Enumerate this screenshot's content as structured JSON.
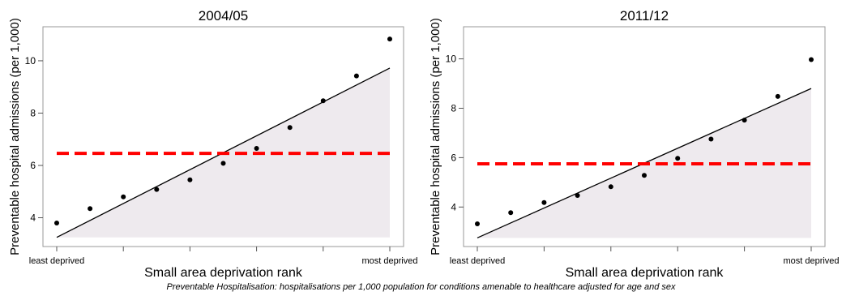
{
  "caption": "Preventable Hospitalisation: hospitalisations per 1,000 population for conditions amenable to healthcare adjusted for age and sex",
  "colors": {
    "points": "#000000",
    "trend_line": "#000000",
    "shade": "#eeeaee",
    "mean_line": "#ff0000",
    "frame": "#999999"
  },
  "chart_data": [
    {
      "type": "scatter",
      "title": "2004/05",
      "xlabel": "Small area deprivation rank",
      "ylabel": "Preventable hospital admissions (per 1,000)",
      "xtick_labels": [
        "least deprived",
        "most deprived"
      ],
      "x": [
        1,
        2,
        3,
        4,
        5,
        6,
        7,
        8,
        9,
        10,
        11
      ],
      "xlim": [
        1,
        11
      ],
      "ylim": [
        2.9,
        11.3
      ],
      "yticks": [
        4,
        6,
        8,
        10
      ],
      "points": [
        3.8,
        4.35,
        4.8,
        5.08,
        5.45,
        6.08,
        6.65,
        7.45,
        8.47,
        9.42,
        10.83
      ],
      "trend_line": {
        "start": 3.25,
        "end": 9.72
      },
      "mean_line": 6.46,
      "grid": false,
      "legend": "none"
    },
    {
      "type": "scatter",
      "title": "2011/12",
      "xlabel": "Small area deprivation rank",
      "ylabel": "Preventable hospital admissions (per 1,000)",
      "xtick_labels": [
        "least deprived",
        "most deprived"
      ],
      "x": [
        1,
        2,
        3,
        4,
        5,
        6,
        7,
        8,
        9,
        10,
        11
      ],
      "xlim": [
        1,
        11
      ],
      "ylim": [
        2.4,
        11.3
      ],
      "yticks": [
        4,
        6,
        8,
        10
      ],
      "points": [
        3.32,
        3.77,
        4.18,
        4.47,
        4.82,
        5.28,
        5.97,
        6.75,
        7.52,
        8.48,
        9.97
      ],
      "trend_line": {
        "start": 2.75,
        "end": 8.8
      },
      "mean_line": 5.75,
      "grid": false,
      "legend": "none"
    }
  ]
}
